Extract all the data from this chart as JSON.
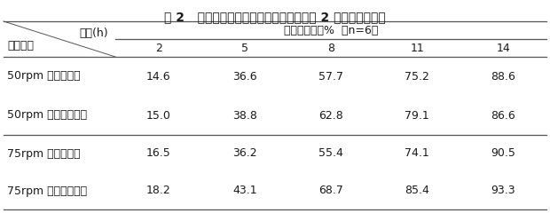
{
  "title": "表 2   不同转速下本发明制剂与对比实施例 2 释放度对比研究",
  "header_time": "时间(h)",
  "header_avg": "平均释放度，%  （n=6）",
  "header_sample": "样品名称",
  "time_points": [
    "2",
    "5",
    "8",
    "11",
    "14"
  ],
  "rows": [
    {
      "label": "50rpm 本发明制剂",
      "values": [
        "14.6",
        "36.6",
        "57.7",
        "75.2",
        "88.6"
      ]
    },
    {
      "label": "50rpm 基质型缓释片",
      "values": [
        "15.0",
        "38.8",
        "62.8",
        "79.1",
        "86.6"
      ]
    },
    {
      "label": "75rpm 本发明制剂",
      "values": [
        "16.5",
        "36.2",
        "55.4",
        "74.1",
        "90.5"
      ]
    },
    {
      "label": "75rpm 基质型缓释片",
      "values": [
        "18.2",
        "43.1",
        "68.7",
        "85.4",
        "93.3"
      ]
    }
  ],
  "bg_color": "#ffffff",
  "text_color": "#1a1a1a",
  "line_color": "#555555",
  "title_fontsize": 10,
  "header_fontsize": 9,
  "cell_fontsize": 9
}
